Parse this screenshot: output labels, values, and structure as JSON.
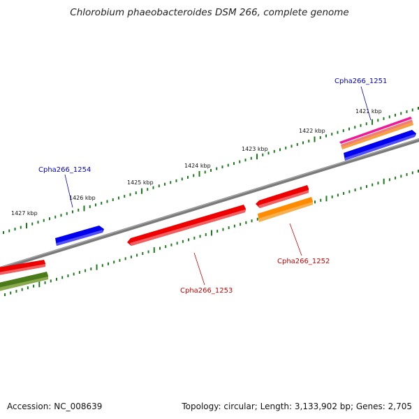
{
  "title": "Chlorobium phaeobacteroides DSM 266, complete genome",
  "footer": {
    "accession": "Accession: NC_008639",
    "summary": "Topology: circular; Length: 3,133,902 bp; Genes: 2,705"
  },
  "scale_labels": [
    "1421 kbp",
    "1422 kbp",
    "1423 kbp",
    "1424 kbp",
    "1425 kbp",
    "1426 kbp",
    "1427 kbp"
  ],
  "gene_labels": [
    {
      "name": "Cpha266_1251",
      "color": "#0000cc"
    },
    {
      "name": "Cpha266_1254",
      "color": "#0000cc"
    },
    {
      "name": "Cpha266_1252",
      "color": "#cc0000"
    },
    {
      "name": "Cpha266_1253",
      "color": "#cc0000"
    }
  ],
  "colors": {
    "backbone": "#808080",
    "ticks": "#1a7a1a",
    "gene_blue": "#0000ee",
    "gene_red": "#ee0000",
    "gene_orange": "#ff8c00",
    "gene_olive": "#4a7a1a",
    "gene_magenta": "#ee1a9a"
  }
}
